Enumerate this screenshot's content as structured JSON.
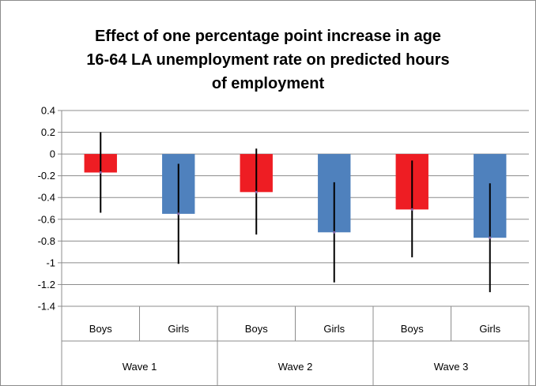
{
  "chart_data": {
    "type": "bar",
    "title_lines": [
      "Effect of one percentage point increase in age",
      "16-64 LA unemployment rate on predicted hours",
      "of employment"
    ],
    "xlabel": "",
    "ylabel": "",
    "ylim": [
      -1.4,
      0.4
    ],
    "yticks": [
      "0.4",
      "0.2",
      "0",
      "-0.2",
      "-0.4",
      "-0.6",
      "-0.8",
      "-1",
      "-1.2",
      "-1.4"
    ],
    "ytick_values": [
      0.4,
      0.2,
      0,
      -0.2,
      -0.4,
      -0.6,
      -0.8,
      -1,
      -1.2,
      -1.4
    ],
    "grid": true,
    "legend": "none",
    "groups": [
      "Wave 1",
      "Wave 2",
      "Wave 3"
    ],
    "categories": [
      "Boys",
      "Girls",
      "Boys",
      "Girls",
      "Boys",
      "Girls"
    ],
    "values": [
      -0.17,
      -0.55,
      -0.35,
      -0.72,
      -0.51,
      -0.77
    ],
    "error_low": [
      -0.54,
      -1.01,
      -0.74,
      -1.18,
      -0.95,
      -1.27
    ],
    "error_high": [
      0.2,
      -0.09,
      0.05,
      -0.26,
      -0.06,
      -0.27
    ],
    "colors": [
      "#ee1d23",
      "#4f81bd",
      "#ee1d23",
      "#4f81bd",
      "#ee1d23",
      "#4f81bd"
    ]
  }
}
